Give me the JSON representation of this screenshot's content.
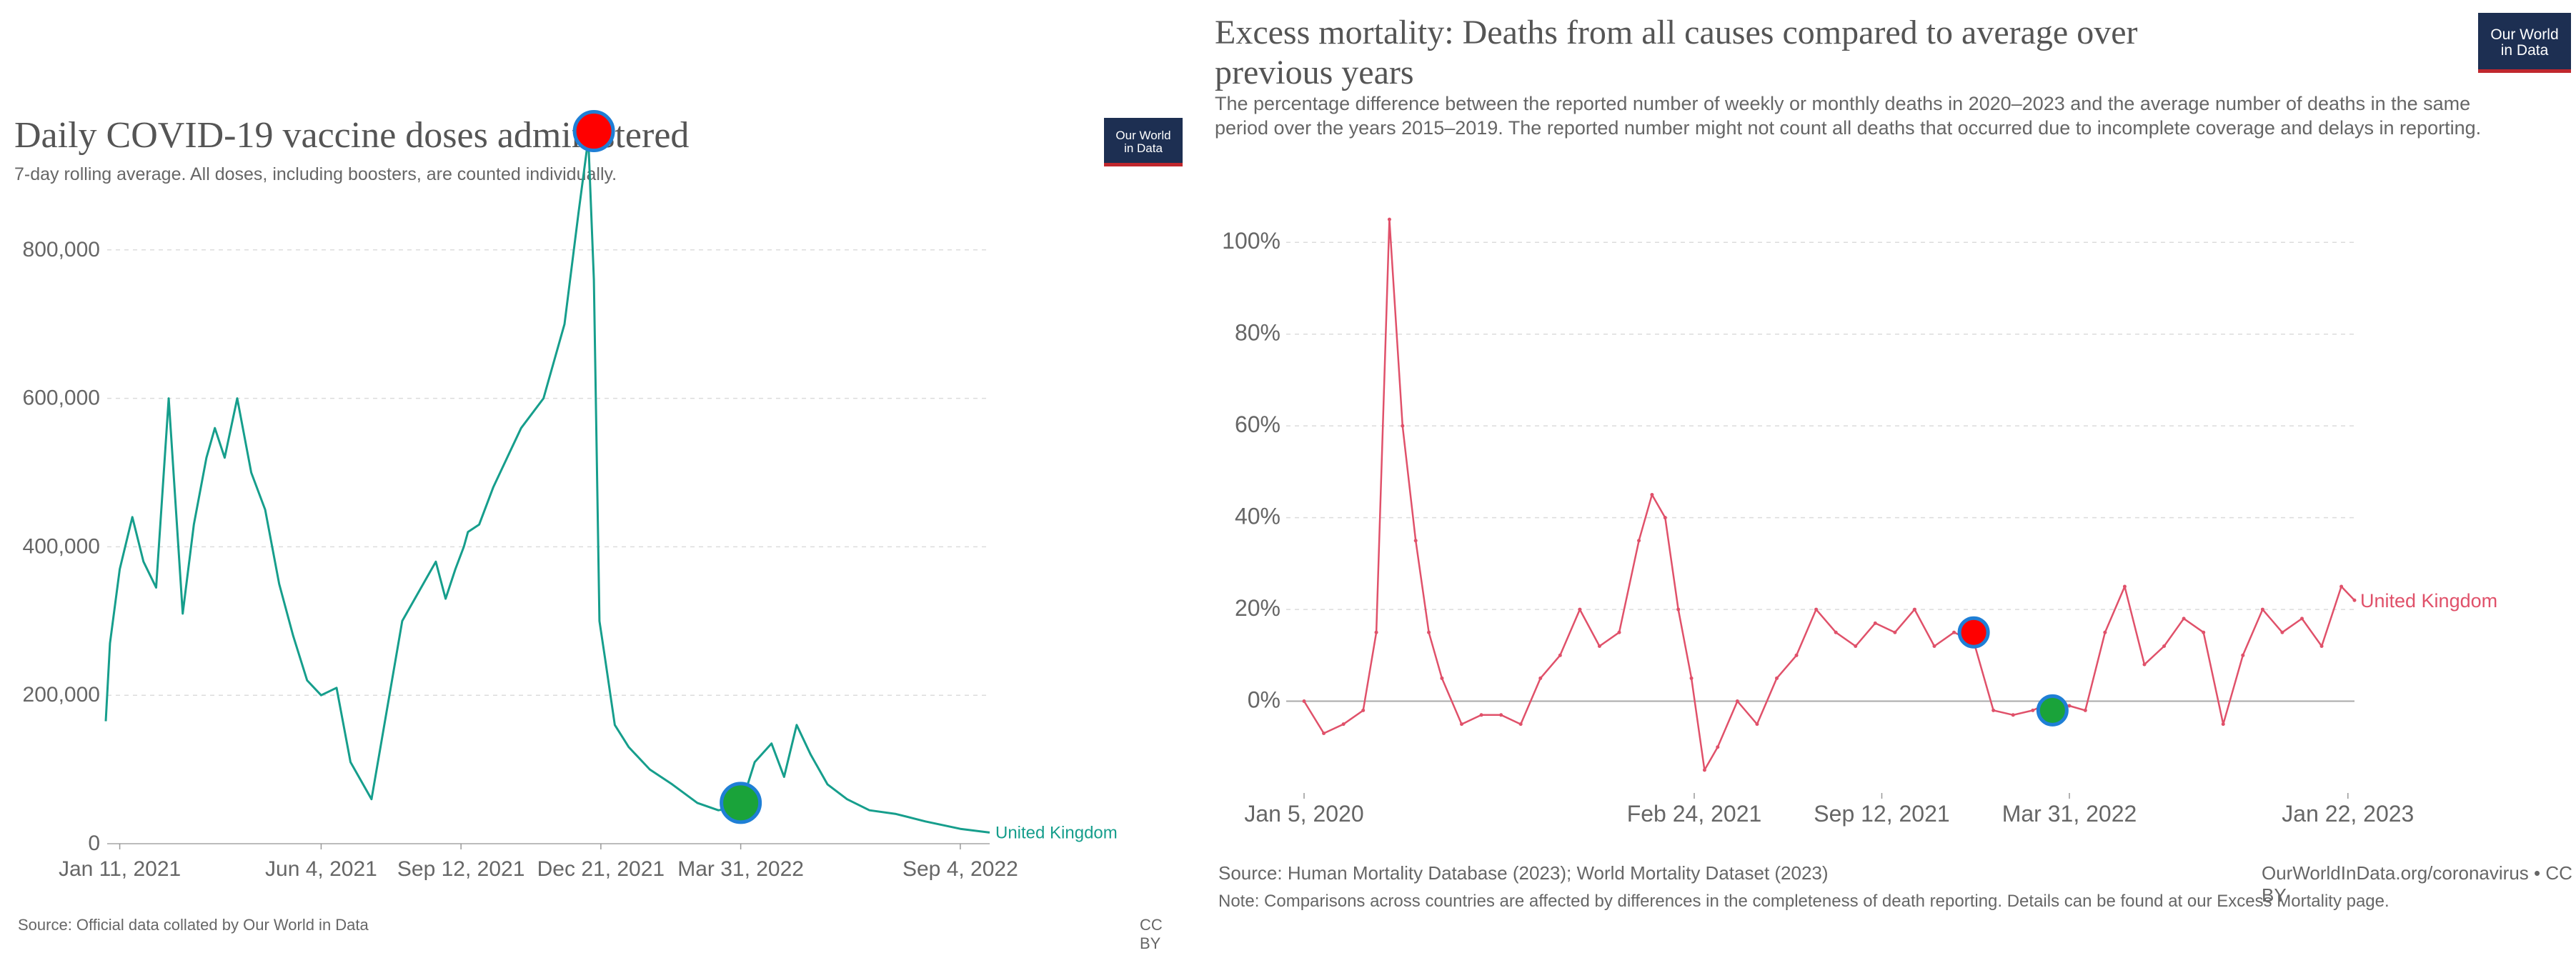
{
  "chart_data": [
    {
      "type": "line",
      "title": "Daily COVID-19 vaccine doses administered",
      "subtitle": "7-day rolling average. All doses, including boosters, are counted individually.",
      "logo": "Our World in Data",
      "x_ticks": [
        "Jan 11, 2021",
        "Jun 4, 2021",
        "Sep 12, 2021",
        "Dec 21, 2021",
        "Mar 31, 2022",
        "Sep 4, 2022"
      ],
      "y_ticks": [
        "0",
        "200,000",
        "400,000",
        "600,000",
        "800,000"
      ],
      "ylim": [
        0,
        1000000
      ],
      "grid": true,
      "line_color": "#169e8c",
      "series": [
        {
          "name": "United Kingdom",
          "x": [
            "2021-01-01",
            "2021-01-04",
            "2021-01-11",
            "2021-01-20",
            "2021-01-28",
            "2021-02-06",
            "2021-02-15",
            "2021-02-25",
            "2021-03-05",
            "2021-03-14",
            "2021-03-20",
            "2021-03-27",
            "2021-04-05",
            "2021-04-15",
            "2021-04-25",
            "2021-05-05",
            "2021-05-15",
            "2021-05-25",
            "2021-06-04",
            "2021-06-15",
            "2021-06-25",
            "2021-07-10",
            "2021-08-01",
            "2021-08-25",
            "2021-09-01",
            "2021-09-08",
            "2021-09-14",
            "2021-09-17",
            "2021-09-25",
            "2021-10-05",
            "2021-10-15",
            "2021-10-25",
            "2021-11-10",
            "2021-11-25",
            "2021-12-05",
            "2021-12-12",
            "2021-12-16",
            "2021-12-20",
            "2021-12-24",
            "2021-12-31",
            "2022-01-10",
            "2022-01-25",
            "2022-02-10",
            "2022-02-28",
            "2022-03-15",
            "2022-03-31",
            "2022-04-10",
            "2022-04-22",
            "2022-05-01",
            "2022-05-10",
            "2022-05-20",
            "2022-06-01",
            "2022-06-15",
            "2022-07-01",
            "2022-07-20",
            "2022-08-10",
            "2022-09-04",
            "2022-09-25"
          ],
          "y": [
            165000,
            270000,
            370000,
            440000,
            380000,
            345000,
            600000,
            310000,
            430000,
            520000,
            560000,
            520000,
            600000,
            500000,
            450000,
            350000,
            280000,
            220000,
            200000,
            210000,
            110000,
            60000,
            300000,
            380000,
            330000,
            370000,
            400000,
            420000,
            430000,
            480000,
            520000,
            560000,
            600000,
            700000,
            850000,
            950000,
            760000,
            300000,
            250000,
            160000,
            130000,
            100000,
            80000,
            55000,
            45000,
            50000,
            110000,
            135000,
            90000,
            160000,
            120000,
            80000,
            60000,
            45000,
            40000,
            30000,
            20000,
            15000
          ]
        }
      ],
      "series_label": "United Kingdom",
      "markers": [
        {
          "x": "2021-12-16",
          "y": 960000,
          "color": "#ff0000"
        },
        {
          "x": "2022-03-31",
          "y": 55000,
          "color": "#1aa33a"
        }
      ],
      "source": "Source: Official data collated by Our World in Data",
      "license": "CC BY"
    },
    {
      "type": "line",
      "title": "Excess mortality: Deaths from all causes compared to average over previous years",
      "subtitle": "The percentage difference between the reported number of weekly or monthly deaths in 2020–2023 and the average number of deaths in the same period over the years 2015–2019. The reported number might not count all deaths that occurred due to incomplete coverage and delays in reporting.",
      "logo": "Our World in Data",
      "x_ticks": [
        "Jan 5, 2020",
        "Feb 24, 2021",
        "Sep 12, 2021",
        "Mar 31, 2022",
        "Jan 22, 2023"
      ],
      "y_ticks": [
        "0%",
        "20%",
        "40%",
        "60%",
        "80%",
        "100%"
      ],
      "ylim": [
        -20,
        110
      ],
      "grid": true,
      "line_color": "#e0516a",
      "series": [
        {
          "name": "United Kingdom",
          "x": [
            "2020-01-05",
            "2020-01-26",
            "2020-02-16",
            "2020-03-08",
            "2020-03-22",
            "2020-04-05",
            "2020-04-19",
            "2020-05-03",
            "2020-05-17",
            "2020-05-31",
            "2020-06-21",
            "2020-07-12",
            "2020-08-02",
            "2020-08-23",
            "2020-09-13",
            "2020-10-04",
            "2020-10-25",
            "2020-11-15",
            "2020-12-06",
            "2020-12-27",
            "2021-01-10",
            "2021-01-24",
            "2021-02-07",
            "2021-02-21",
            "2021-03-07",
            "2021-03-21",
            "2021-04-11",
            "2021-05-02",
            "2021-05-23",
            "2021-06-13",
            "2021-07-04",
            "2021-07-25",
            "2021-08-15",
            "2021-09-05",
            "2021-09-26",
            "2021-10-17",
            "2021-11-07",
            "2021-11-28",
            "2021-12-19",
            "2022-01-09",
            "2022-01-30",
            "2022-02-20",
            "2022-03-13",
            "2022-03-31",
            "2022-04-17",
            "2022-05-08",
            "2022-05-29",
            "2022-06-19",
            "2022-07-10",
            "2022-07-31",
            "2022-08-21",
            "2022-09-11",
            "2022-10-02",
            "2022-10-23",
            "2022-11-13",
            "2022-12-04",
            "2022-12-25",
            "2023-01-15",
            "2023-01-29"
          ],
          "y": [
            0,
            -7,
            -5,
            -2,
            15,
            105,
            60,
            35,
            15,
            5,
            -5,
            -3,
            -3,
            -5,
            5,
            10,
            20,
            12,
            15,
            35,
            45,
            40,
            20,
            5,
            -15,
            -10,
            0,
            -5,
            5,
            10,
            20,
            15,
            12,
            17,
            15,
            20,
            12,
            15,
            13,
            -2,
            -3,
            -2,
            0,
            -1,
            -2,
            15,
            25,
            8,
            12,
            18,
            15,
            -5,
            10,
            20,
            15,
            18,
            12,
            25,
            22
          ]
        }
      ],
      "series_label": "United Kingdom",
      "markers": [
        {
          "x": "2021-12-19",
          "y": 15,
          "color": "#ff0000"
        },
        {
          "x": "2022-03-13",
          "y": -2,
          "color": "#1aa33a"
        }
      ],
      "source": "Source: Human Mortality Database (2023); World Mortality Dataset (2023)",
      "license": "OurWorldInData.org/coronavirus • CC BY",
      "note": "Note: Comparisons across countries are affected by differences in the completeness of death reporting. Details can be found at our Excess Mortality page."
    }
  ]
}
